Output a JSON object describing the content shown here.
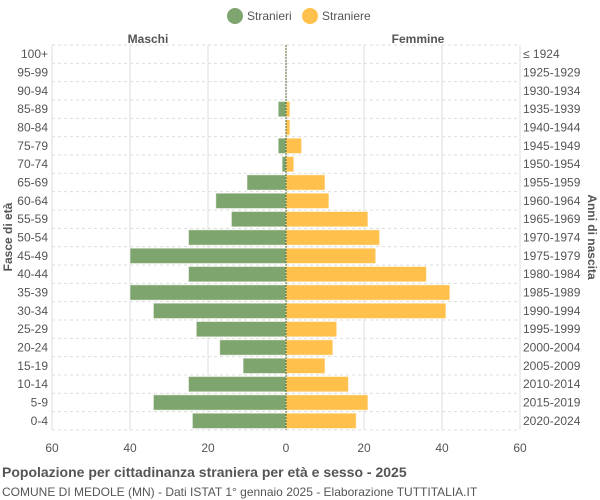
{
  "chart_data": {
    "type": "bar",
    "orientation": "horizontal-pyramid",
    "title": "Popolazione per cittadinanza straniera per età e sesso - 2025",
    "subtitle": "COMUNE DI MEDOLE (MN) - Dati ISTAT 1° gennaio 2025 - Elaborazione TUTTITALIA.IT",
    "ylabel_left": "Fasce di età",
    "ylabel_right": "Anni di nascita",
    "left_header": "Maschi",
    "right_header": "Femmine",
    "legend": [
      {
        "name": "Stranieri",
        "color": "#7fa56f"
      },
      {
        "name": "Straniere",
        "color": "#ffc04c"
      }
    ],
    "legend_position": "top",
    "xlim": [
      -60,
      60
    ],
    "xticks": [
      "60",
      "40",
      "20",
      "0",
      "20",
      "40",
      "60"
    ],
    "grid": true,
    "categories": [
      "100+",
      "95-99",
      "90-94",
      "85-89",
      "80-84",
      "75-79",
      "70-74",
      "65-69",
      "60-64",
      "55-59",
      "50-54",
      "45-49",
      "40-44",
      "35-39",
      "30-34",
      "25-29",
      "20-24",
      "15-19",
      "10-14",
      "5-9",
      "0-4"
    ],
    "birth_years": [
      "≤ 1924",
      "1925-1929",
      "1930-1934",
      "1935-1939",
      "1940-1944",
      "1945-1949",
      "1950-1954",
      "1955-1959",
      "1960-1964",
      "1965-1969",
      "1970-1974",
      "1975-1979",
      "1980-1984",
      "1985-1989",
      "1990-1994",
      "1995-1999",
      "2000-2004",
      "2005-2009",
      "2010-2014",
      "2015-2019",
      "2020-2024"
    ],
    "series": [
      {
        "name": "Stranieri",
        "values": [
          0,
          0,
          0,
          2,
          0,
          2,
          1,
          10,
          18,
          14,
          25,
          40,
          25,
          40,
          34,
          23,
          17,
          11,
          25,
          34,
          24
        ]
      },
      {
        "name": "Straniere",
        "values": [
          0,
          0,
          0,
          1,
          1,
          4,
          2,
          10,
          11,
          21,
          24,
          23,
          36,
          42,
          41,
          13,
          12,
          10,
          16,
          21,
          18
        ]
      }
    ]
  }
}
